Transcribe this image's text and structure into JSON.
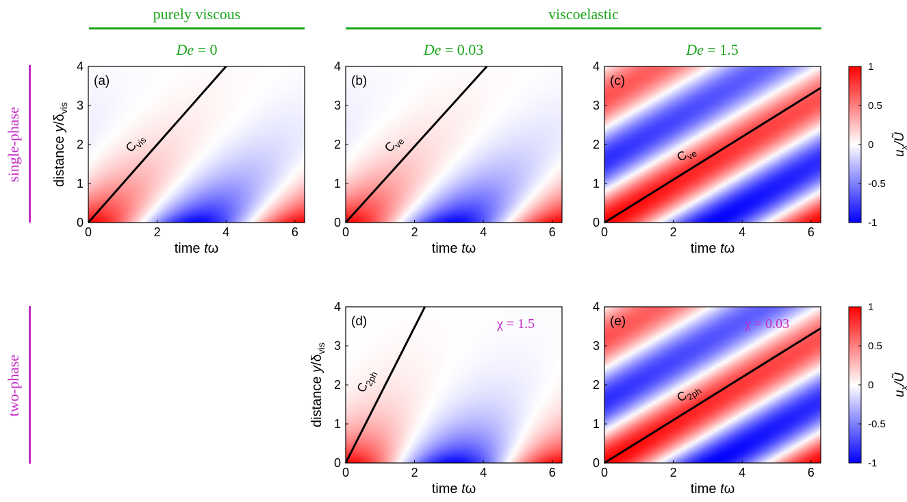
{
  "headers": {
    "purely_viscous": "purely viscous",
    "viscoelastic": "viscoelastic",
    "de_prefix": "De",
    "de_values": [
      "= 0",
      "= 0.03",
      "= 1.5"
    ]
  },
  "rows": {
    "single_phase": "single-phase",
    "two_phase": "two-phase"
  },
  "colors": {
    "green": "#1aa51a",
    "magenta": "#c428c4",
    "red": "#ff0000",
    "blue": "#0000ff"
  },
  "chart_data": [
    {
      "type": "heatmap",
      "panel": "(a)",
      "title": "",
      "xlabel": "time tω",
      "ylabel": "distance y/δvis",
      "xlim": [
        0,
        6.283
      ],
      "ylim": [
        0,
        4
      ],
      "x_ticks": [
        0,
        2,
        4,
        6
      ],
      "y_ticks": [
        0,
        1,
        2,
        3,
        4
      ],
      "line": {
        "label": "C vis",
        "from": [
          0,
          0
        ],
        "to": [
          4.0,
          4
        ]
      },
      "field": "viscous"
    },
    {
      "type": "heatmap",
      "panel": "(b)",
      "title": "",
      "xlabel": "time tω",
      "ylabel": "",
      "xlim": [
        0,
        6.283
      ],
      "ylim": [
        0,
        4
      ],
      "x_ticks": [
        0,
        2,
        4,
        6
      ],
      "y_ticks": [
        0,
        1,
        2,
        3,
        4
      ],
      "line": {
        "label": "C ve",
        "from": [
          0,
          0
        ],
        "to": [
          4.1,
          4
        ]
      },
      "field": "viscous"
    },
    {
      "type": "heatmap",
      "panel": "(c)",
      "title": "",
      "xlabel": "time tω",
      "ylabel": "",
      "xlim": [
        0,
        6.283
      ],
      "ylim": [
        0,
        4
      ],
      "x_ticks": [
        0,
        2,
        4,
        6
      ],
      "y_ticks": [
        0,
        1,
        2,
        3,
        4
      ],
      "line": {
        "label": "C ve",
        "from": [
          0,
          0
        ],
        "to": [
          6.283,
          3.45
        ]
      },
      "field": "elastic"
    },
    {
      "type": "heatmap",
      "panel": "(d)",
      "title": "",
      "xlabel": "time tω",
      "ylabel": "distance y/δvis",
      "xlim": [
        0,
        6.283
      ],
      "ylim": [
        0,
        4
      ],
      "x_ticks": [
        0,
        2,
        4,
        6
      ],
      "y_ticks": [
        0,
        1,
        2,
        3,
        4
      ],
      "line": {
        "label": "C 2ph",
        "from": [
          0,
          0
        ],
        "to": [
          2.3,
          4
        ]
      },
      "field": "twophase",
      "annotation": "χ = 1.5"
    },
    {
      "type": "heatmap",
      "panel": "(e)",
      "title": "",
      "xlabel": "time tω",
      "ylabel": "",
      "xlim": [
        0,
        6.283
      ],
      "ylim": [
        0,
        4
      ],
      "x_ticks": [
        0,
        2,
        4,
        6
      ],
      "y_ticks": [
        0,
        1,
        2,
        3,
        4
      ],
      "line": {
        "label": "C 2ph",
        "from": [
          0,
          0
        ],
        "to": [
          6.283,
          3.45
        ]
      },
      "field": "elastic",
      "annotation": "χ = 0.03"
    }
  ],
  "colorbar": {
    "label": "ux/Ũ",
    "ticks": [
      1,
      0.5,
      0,
      -0.5,
      -1
    ],
    "range": [
      -1,
      1
    ]
  }
}
